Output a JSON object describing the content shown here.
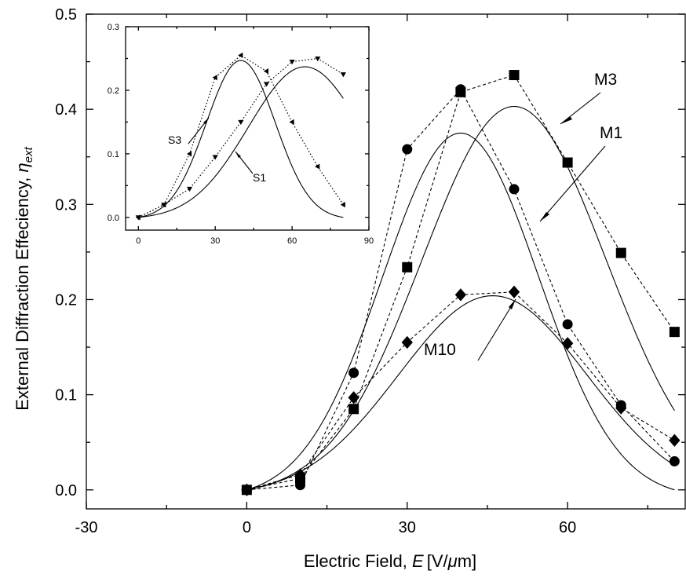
{
  "chart_data": [
    {
      "type": "line",
      "xlabel_prefix": "Electric Field,",
      "xlabel_var": "E",
      "xlabel_units_a": "[V/",
      "xlabel_units_mu": "μ",
      "xlabel_units_b": "m]",
      "ylabel_text": "External Diffraction Effeciency,",
      "ylabel_var": "η",
      "ylabel_sub": "ext",
      "xlim": [
        -30,
        82
      ],
      "ylim": [
        -0.02,
        0.5
      ],
      "x_ticks": [
        -30,
        0,
        30,
        60
      ],
      "x_tick_labels": [
        "-30",
        "0",
        "30",
        "60"
      ],
      "y_ticks": [
        0.0,
        0.1,
        0.2,
        0.3,
        0.4,
        0.5
      ],
      "y_tick_labels": [
        "0.0",
        "0.1",
        "0.2",
        "0.3",
        "0.4",
        "0.5"
      ],
      "grid": false,
      "series": [
        {
          "name": "M1",
          "marker": "circle",
          "x": [
            0,
            10,
            20,
            30,
            40,
            50,
            60,
            70,
            80
          ],
          "y": [
            0.0,
            0.005,
            0.123,
            0.358,
            0.421,
            0.316,
            0.174,
            0.089,
            0.03
          ],
          "fit": {
            "amplitude": 0.384,
            "center": 40,
            "sigma": 14.6
          }
        },
        {
          "name": "M3",
          "marker": "square",
          "x": [
            0,
            10,
            20,
            30,
            40,
            50,
            60,
            70,
            80
          ],
          "y": [
            0.0,
            0.012,
            0.085,
            0.234,
            0.418,
            0.436,
            0.344,
            0.249,
            0.166
          ],
          "fit": {
            "amplitude": 0.409,
            "center": 50,
            "sigma": 17.2
          }
        },
        {
          "name": "M10",
          "marker": "diamond",
          "x": [
            0,
            10,
            20,
            30,
            40,
            50,
            60,
            70,
            80
          ],
          "y": [
            0.0,
            0.016,
            0.097,
            0.155,
            0.205,
            0.208,
            0.154,
            0.086,
            0.052
          ],
          "fit": {
            "amplitude": 0.211,
            "center": 46,
            "sigma": 17.6
          }
        }
      ],
      "annotations": [
        "M3",
        "M1",
        "M10"
      ]
    },
    {
      "type": "line",
      "inset": true,
      "xlim": [
        -5,
        90
      ],
      "ylim": [
        -0.02,
        0.3
      ],
      "x_ticks": [
        0,
        30,
        60,
        90
      ],
      "x_tick_labels": [
        "0",
        "30",
        "60",
        "90"
      ],
      "y_ticks": [
        0.0,
        0.1,
        0.2,
        0.3
      ],
      "y_tick_labels": [
        "0.0",
        "0.1",
        "0.2",
        "0.3"
      ],
      "grid": false,
      "series": [
        {
          "name": "S3",
          "marker": "triangle-left",
          "x": [
            0,
            10,
            20,
            30,
            40,
            50,
            60,
            70,
            80
          ],
          "y": [
            0.0,
            0.02,
            0.1,
            0.22,
            0.255,
            0.23,
            0.15,
            0.08,
            0.02
          ],
          "fit": {
            "amplitude": 0.25,
            "center": 40,
            "sigma": 13.5
          }
        },
        {
          "name": "S1",
          "marker": "triangle-down",
          "x": [
            0,
            10,
            20,
            30,
            40,
            50,
            60,
            70,
            80
          ],
          "y": [
            0.0,
            0.02,
            0.045,
            0.095,
            0.15,
            0.21,
            0.245,
            0.25,
            0.225
          ],
          "fit": {
            "amplitude": 0.24,
            "center": 65,
            "sigma": 22
          }
        }
      ],
      "annotations": [
        "S3",
        "S1"
      ]
    }
  ]
}
